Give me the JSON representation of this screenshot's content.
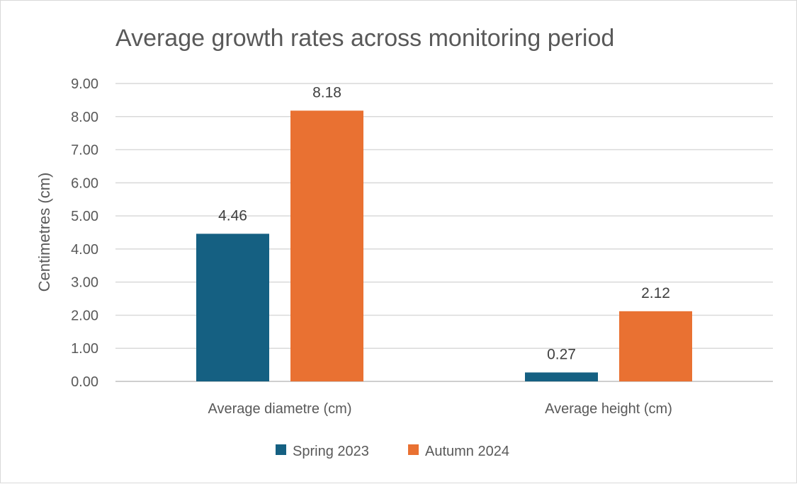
{
  "chart_data": {
    "type": "bar",
    "title": "Average growth rates across monitoring period",
    "xlabel": "",
    "ylabel": "Centimetres (cm)",
    "categories": [
      "Average diametre (cm)",
      "Average height (cm)"
    ],
    "series": [
      {
        "name": "Spring 2023",
        "values": [
          4.46,
          0.27
        ],
        "labels": [
          "4.46",
          "0.27"
        ],
        "color": "#156082"
      },
      {
        "name": "Autumn 2024",
        "values": [
          8.18,
          2.12
        ],
        "labels": [
          "8.18",
          "2.12"
        ],
        "color": "#E97132"
      }
    ],
    "yticks": [
      "0.00",
      "1.00",
      "2.00",
      "3.00",
      "4.00",
      "5.00",
      "6.00",
      "7.00",
      "8.00",
      "9.00"
    ],
    "ylim": [
      0,
      9
    ],
    "grid": true,
    "legend": "bottom"
  }
}
